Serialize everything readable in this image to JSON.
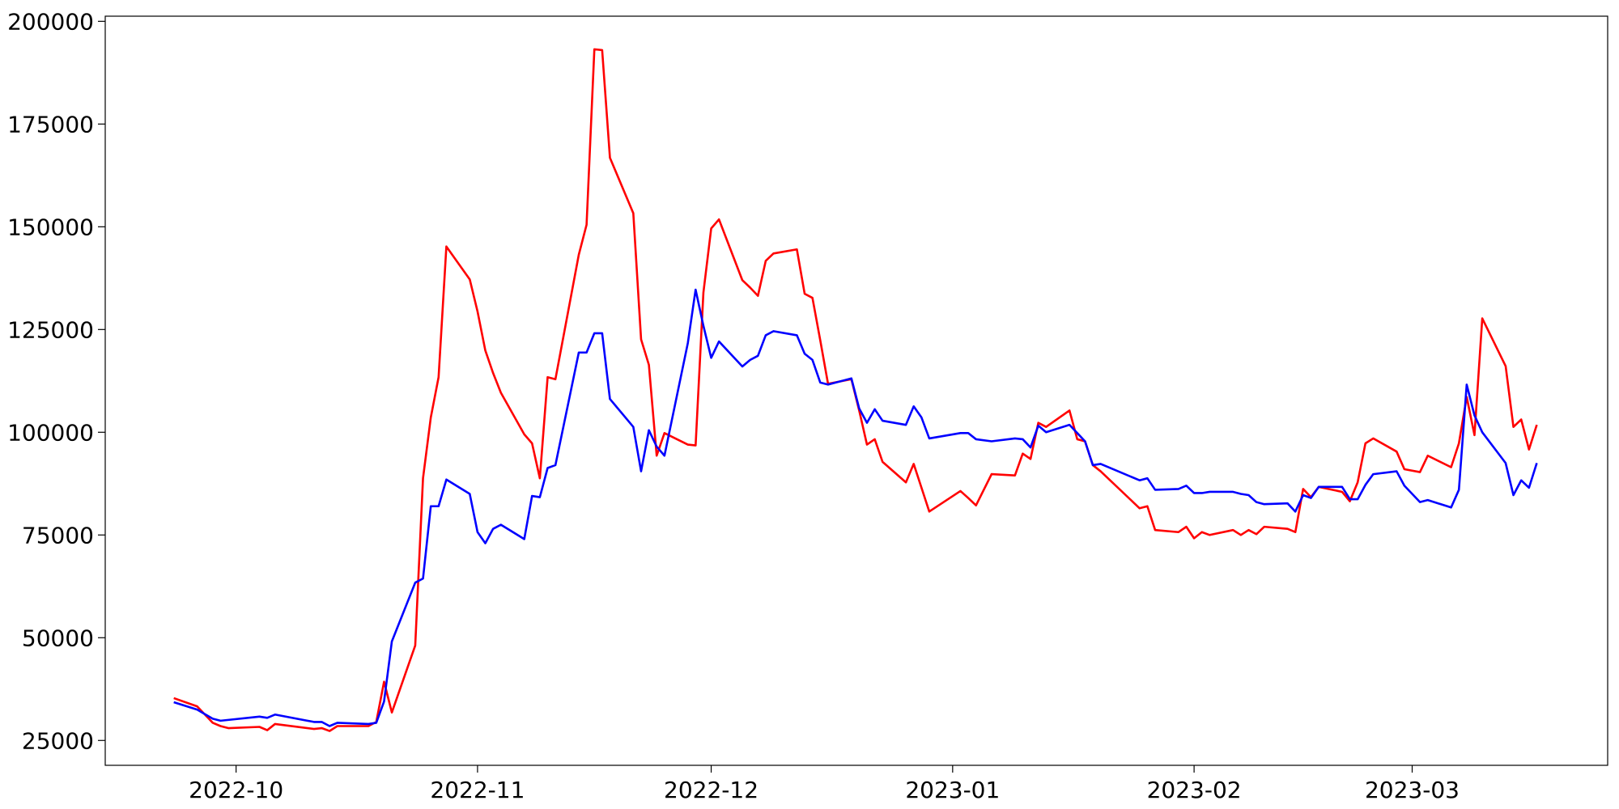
{
  "chart_data": {
    "type": "line",
    "x": [
      19258,
      19261,
      19263,
      19264,
      19265,
      19269,
      19270,
      19271,
      19276,
      19277,
      19278,
      19279,
      19283,
      19284,
      19285,
      19286,
      19289,
      19290,
      19291,
      19292,
      19293,
      19296,
      19297,
      19298,
      19299,
      19300,
      19303,
      19304,
      19305,
      19306,
      19307,
      19310,
      19311,
      19312,
      19313,
      19314,
      19317,
      19318,
      19319,
      19320,
      19321,
      19324,
      19325,
      19326,
      19327,
      19328,
      19331,
      19332,
      19333,
      19334,
      19335,
      19338,
      19339,
      19340,
      19341,
      19342,
      19345,
      19346,
      19347,
      19348,
      19349,
      19352,
      19353,
      19354,
      19355,
      19359,
      19360,
      19361,
      19363,
      19366,
      19367,
      19368,
      19369,
      19370,
      19373,
      19374,
      19375,
      19376,
      19377,
      19382,
      19383,
      19384,
      19387,
      19388,
      19389,
      19390,
      19391,
      19394,
      19395,
      19396,
      19397,
      19398,
      19401,
      19402,
      19403,
      19404,
      19405,
      19408,
      19409,
      19410,
      19411,
      19412,
      19415,
      19416,
      19418,
      19419,
      19422,
      19423,
      19424,
      19425,
      19426,
      19429,
      19430,
      19431,
      19432,
      19433
    ],
    "series": [
      {
        "color": "#ff0000",
        "values": [
          35300,
          33300,
          29300,
          28500,
          28000,
          28300,
          27500,
          29000,
          27800,
          28000,
          27300,
          28500,
          28500,
          29500,
          39300,
          31800,
          48100,
          88800,
          103600,
          113400,
          145200,
          137200,
          129400,
          119900,
          114400,
          109600,
          99500,
          97300,
          88800,
          113400,
          112900,
          143200,
          150500,
          193200,
          193000,
          166800,
          153300,
          122600,
          116400,
          94300,
          99800,
          97000,
          96800,
          134000,
          149600,
          151800,
          137000,
          135200,
          133200,
          141700,
          143500,
          144500,
          133700,
          132700,
          122400,
          111800,
          112900,
          105300,
          97000,
          98300,
          92800,
          87800,
          92300,
          86500,
          80700,
          85700,
          84000,
          82200,
          89800,
          89500,
          94800,
          93500,
          102300,
          101300,
          105300,
          98300,
          97800,
          92000,
          90500,
          81500,
          82000,
          76200,
          75700,
          77000,
          74200,
          75700,
          75000,
          76200,
          75000,
          76200,
          75200,
          77000,
          76500,
          75700,
          86200,
          84200,
          86700,
          85500,
          83200,
          87800,
          97300,
          98500,
          95300,
          91000,
          90300,
          94300,
          91500,
          97300,
          108600,
          99300,
          127700,
          116100,
          101300,
          103100,
          95800,
          101800
        ]
      },
      {
        "color": "#0000ff",
        "values": [
          34300,
          32500,
          30300,
          29800,
          30000,
          30800,
          30500,
          31300,
          29500,
          29500,
          28500,
          29300,
          29000,
          29300,
          34500,
          49100,
          63400,
          64400,
          82000,
          82000,
          88500,
          85000,
          75700,
          73000,
          76500,
          77500,
          74000,
          84500,
          84200,
          91300,
          92000,
          119400,
          119400,
          124100,
          124100,
          108100,
          101300,
          90500,
          100500,
          96500,
          94300,
          121700,
          134700,
          125900,
          118100,
          122100,
          116000,
          117600,
          118600,
          123600,
          124600,
          123600,
          119100,
          117600,
          112100,
          111600,
          113100,
          105800,
          102300,
          105600,
          102800,
          101800,
          106300,
          103600,
          98500,
          99800,
          99800,
          98300,
          97800,
          98500,
          98300,
          96300,
          101600,
          100000,
          101800,
          99800,
          97800,
          92000,
          92300,
          88300,
          88800,
          86000,
          86200,
          87000,
          85200,
          85200,
          85500,
          85500,
          85000,
          84700,
          83000,
          82500,
          82700,
          80700,
          84700,
          84000,
          86700,
          86700,
          83700,
          83700,
          87200,
          89800,
          90500,
          87000,
          83000,
          83500,
          81700,
          86000,
          111600,
          104100,
          100000,
          92500,
          84700,
          88300,
          86500,
          92500
        ]
      }
    ],
    "xlim": [
      19249.2,
      19442.1
    ],
    "xticks": [
      {
        "value": 19266,
        "label": "2022-10"
      },
      {
        "value": 19297,
        "label": "2022-11"
      },
      {
        "value": 19327,
        "label": "2022-12"
      },
      {
        "value": 19358,
        "label": "2023-01"
      },
      {
        "value": 19389,
        "label": "2023-02"
      },
      {
        "value": 19417,
        "label": "2023-03"
      }
    ],
    "ylim": [
      18950,
      201250
    ],
    "yticks": [
      25000,
      50000,
      75000,
      100000,
      125000,
      150000,
      175000,
      200000
    ]
  }
}
